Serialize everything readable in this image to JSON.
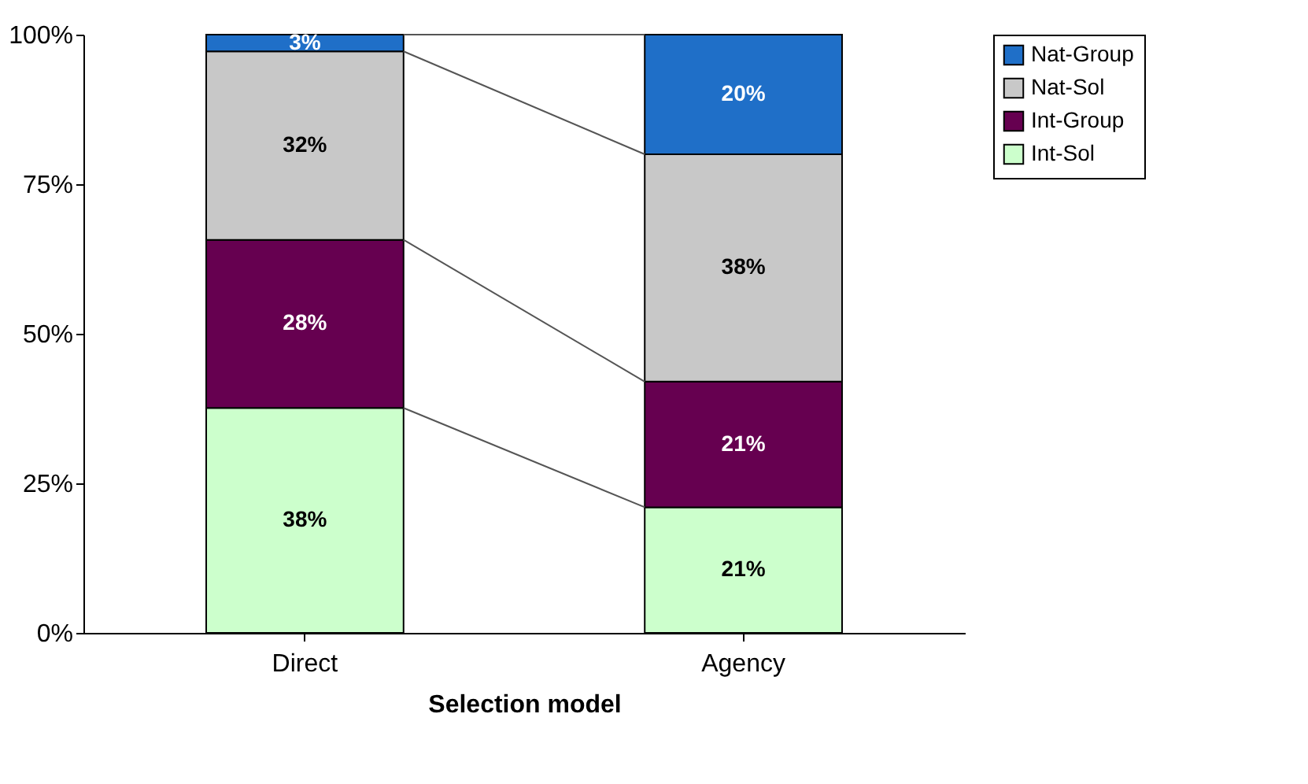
{
  "chart_data": {
    "type": "bar",
    "stacked": true,
    "xlabel": "Selection model",
    "categories": [
      "Direct",
      "Agency"
    ],
    "series": [
      {
        "name": "Int-Sol",
        "color": "#ccffcc",
        "values": [
          37.6,
          21
        ],
        "value_labels": [
          "38%",
          "21%"
        ]
      },
      {
        "name": "Int-Group",
        "color": "#660050",
        "values": [
          28.1,
          21
        ],
        "value_labels": [
          "28%",
          "21%"
        ]
      },
      {
        "name": "Nat-Sol",
        "color": "#c8c8c8",
        "values": [
          31.5,
          38
        ],
        "value_labels": [
          "32%",
          "38%"
        ]
      },
      {
        "name": "Nat-Group",
        "color": "#1f6fc8",
        "values": [
          2.8,
          20
        ],
        "value_labels": [
          "3%",
          "20%"
        ]
      }
    ],
    "ylim": [
      0,
      100
    ],
    "yticks": [
      {
        "value": 0,
        "label": "0%"
      },
      {
        "value": 25,
        "label": "25%"
      },
      {
        "value": 50,
        "label": "50%"
      },
      {
        "value": 75,
        "label": "75%"
      },
      {
        "value": 100,
        "label": "100%"
      }
    ],
    "grid": false,
    "legend": "right"
  }
}
